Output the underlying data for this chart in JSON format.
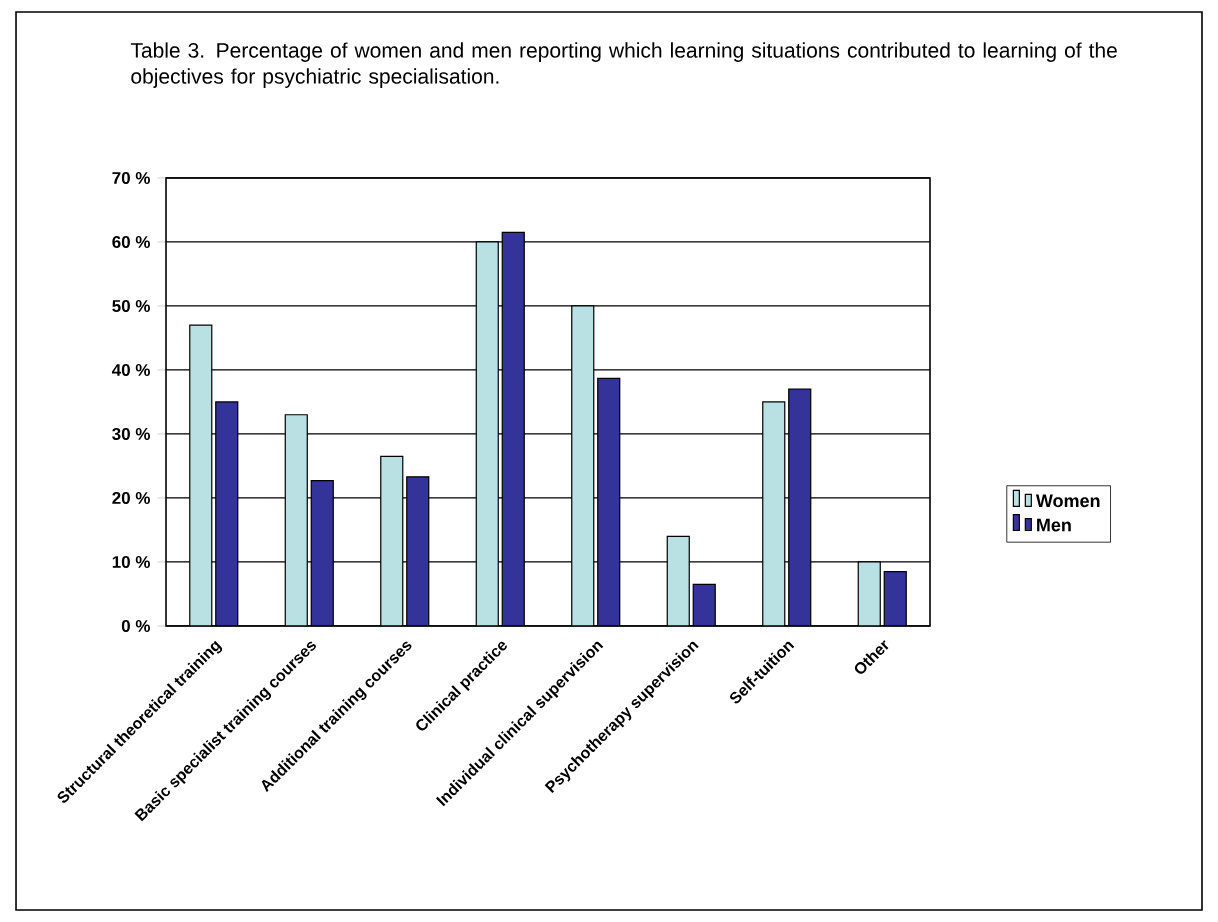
{
  "chart_data": {
    "type": "bar",
    "title": "Table 3. Percentage of women and men reporting which learning situations contributed to learning of the objectives for psychiatric specialisation.",
    "categories": [
      "Structural theoretical training",
      "Basic specialist training courses",
      "Additional training courses",
      "Clinical practice",
      "Individual clinical supervision",
      "Psychotherapy supervision",
      "Self-tuition",
      "Other"
    ],
    "series": [
      {
        "name": "Women",
        "color": "#b9e1e3",
        "values": [
          47,
          33,
          26.5,
          60,
          50,
          14,
          35,
          10
        ]
      },
      {
        "name": "Men",
        "color": "#333399",
        "values": [
          35,
          22.7,
          23.3,
          61.5,
          38.7,
          6.5,
          37,
          8.5
        ]
      }
    ],
    "ylim": [
      0,
      70
    ],
    "yticks": [
      {
        "value": 0,
        "label": "0 %"
      },
      {
        "value": 10,
        "label": "10 %"
      },
      {
        "value": 20,
        "label": "20 %"
      },
      {
        "value": 30,
        "label": "30 %"
      },
      {
        "value": 40,
        "label": "40 %"
      },
      {
        "value": 50,
        "label": "50 %"
      },
      {
        "value": 60,
        "label": "60 %"
      },
      {
        "value": 70,
        "label": "70 %"
      }
    ],
    "grid": "y",
    "legend": "right"
  }
}
